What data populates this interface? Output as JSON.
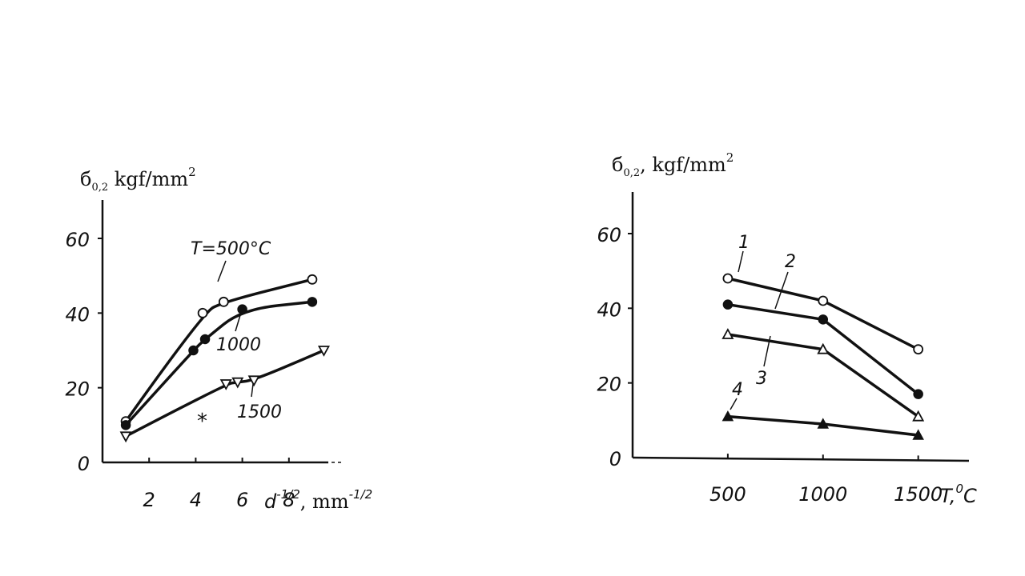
{
  "chart_data": [
    {
      "type": "line",
      "ylabel": {
        "main": "б",
        "sub": "0,2",
        "unit": " kgf/mm",
        "sup": "2"
      },
      "xlabel": {
        "main": "d",
        "sup": "-1/2",
        "unit": ", mm",
        "unit_sup": "-1/2"
      },
      "xticks": [
        "2",
        "4",
        "6",
        "8"
      ],
      "yticks": [
        "0",
        "20",
        "40",
        "60"
      ],
      "xlim": [
        0,
        10
      ],
      "ylim": [
        0,
        72
      ],
      "series": [
        {
          "name": "T=500°C",
          "marker": "open-circle",
          "x": [
            1,
            4.3,
            5.2,
            9
          ],
          "y": [
            11,
            40,
            43,
            49
          ]
        },
        {
          "name": "1000",
          "marker": "filled-circle",
          "x": [
            1,
            3.9,
            4.4,
            6,
            9
          ],
          "y": [
            10,
            30,
            33,
            41,
            43
          ]
        },
        {
          "name": "1500",
          "marker": "open-triangle-down",
          "x": [
            1,
            5.3,
            5.8,
            6.5,
            9.5
          ],
          "y": [
            7,
            21,
            21.5,
            22,
            30
          ]
        }
      ],
      "annotations": [
        {
          "text": "*",
          "x": 5.5,
          "y": 12
        }
      ]
    },
    {
      "type": "line",
      "ylabel": {
        "main": "б",
        "sub": "0,2",
        "unit": ", kgf/mm",
        "sup": "2"
      },
      "xlabel": {
        "main": "T,",
        "sup": "0",
        "unit": "C"
      },
      "xticks": [
        "500",
        "1000",
        "1500"
      ],
      "yticks": [
        "0",
        "20",
        "40",
        "60"
      ],
      "xlim": [
        0,
        1800
      ],
      "ylim": [
        0,
        72
      ],
      "series": [
        {
          "name": "1",
          "marker": "open-circle",
          "x": [
            500,
            1000,
            1500
          ],
          "y": [
            48,
            42,
            29
          ]
        },
        {
          "name": "2",
          "marker": "filled-circle",
          "x": [
            500,
            1000,
            1500
          ],
          "y": [
            41,
            37,
            17
          ]
        },
        {
          "name": "3",
          "marker": "open-triangle",
          "x": [
            500,
            1000,
            1500
          ],
          "y": [
            33,
            29,
            11
          ]
        },
        {
          "name": "4",
          "marker": "filled-triangle",
          "x": [
            500,
            1000,
            1500
          ],
          "y": [
            11,
            9,
            6
          ]
        }
      ]
    }
  ]
}
